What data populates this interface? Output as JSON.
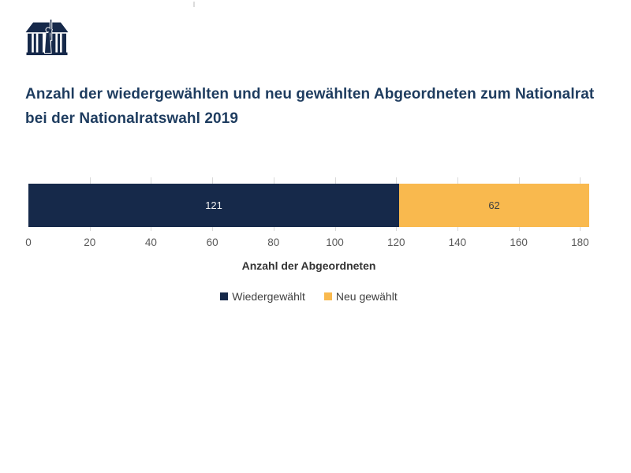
{
  "page": {
    "background": "#ffffff"
  },
  "logo": {
    "name": "austrian-parliament-logo",
    "color": "#16294a"
  },
  "title": {
    "text": "Anzahl der wiedergewählten und neu gewählten Abgeordneten zum Nationalrat bei der Nationalratswahl 2019",
    "color": "#1e3c5f"
  },
  "chart_data": {
    "type": "bar",
    "orientation": "horizontal",
    "stacked": true,
    "title": "Anzahl der wiedergewählten und neu gewählten Abgeordneten zum Nationalrat bei der Nationalratswahl 2019",
    "categories": [
      "Nationalratswahl 2019"
    ],
    "series": [
      {
        "name": "Wiedergewählt",
        "values": [
          121
        ],
        "color": "#16294a",
        "label_color": "#f2f2f2"
      },
      {
        "name": "Neu gewählt",
        "values": [
          62
        ],
        "color": "#f9b94e",
        "label_color": "#404040"
      }
    ],
    "total": 183,
    "xlabel": "Anzahl der Abgeordneten",
    "x_ticks": [
      0,
      20,
      40,
      60,
      80,
      100,
      120,
      140,
      160,
      180
    ],
    "xlim": [
      0,
      183
    ],
    "grid": true,
    "gridline_color": "#d9d9d9",
    "tick_label_color": "#595959",
    "xlabel_color": "#333333",
    "legend_position": "bottom",
    "legend_text_color": "#404040"
  }
}
